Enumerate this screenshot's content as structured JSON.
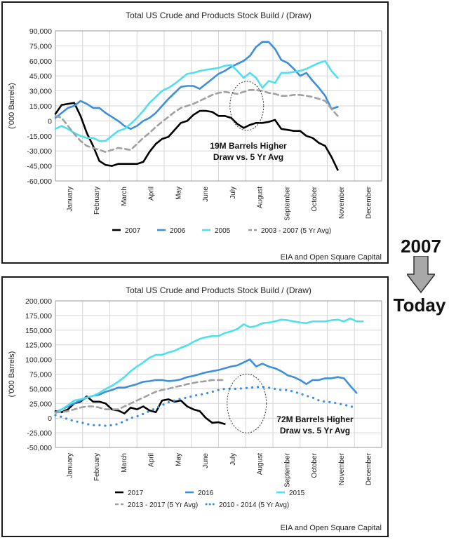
{
  "side": {
    "top_label": "2007",
    "bottom_label": "Today"
  },
  "chart_data": [
    {
      "type": "line",
      "title": "Total US Crude and Products Stock Build / (Draw)",
      "ylabel": "('000 Barrels)",
      "ylim": [
        -60000,
        90000
      ],
      "yticks": [
        90000,
        75000,
        60000,
        45000,
        30000,
        15000,
        0,
        -15000,
        -30000,
        -45000,
        -60000
      ],
      "ytick_labels": [
        "90,000",
        "75,000",
        "60,000",
        "45,000",
        "30,000",
        "15,000",
        "0",
        "-15,000",
        "-30,000",
        "-45,000",
        "-60,000"
      ],
      "months": [
        "January",
        "February",
        "March",
        "April",
        "May",
        "June",
        "July",
        "August",
        "September",
        "October",
        "November",
        "December"
      ],
      "xlim": [
        0,
        52
      ],
      "grid": true,
      "legend_position": "bottom",
      "source": "EIA and Open Square Capital",
      "annotation": {
        "text_line1": "19M Barrels Higher",
        "text_line2": "Draw vs. 5 Yr Avg",
        "circle_x": 30.5,
        "circle_y": 15000
      },
      "series": [
        {
          "name": "2007",
          "color": "#000000",
          "style": "solid",
          "width": 2.6,
          "values": [
            7000,
            16000,
            17000,
            18000,
            5000,
            -12000,
            -25000,
            -40000,
            -44000,
            -45000,
            -43000,
            -43000,
            -43000,
            -43000,
            -41000,
            -31000,
            -23000,
            -18000,
            -16000,
            -9000,
            -2000,
            0,
            6000,
            10000,
            10000,
            9000,
            5000,
            5000,
            3000,
            -3000,
            -7000,
            -4000,
            -2000,
            -2000,
            -1000,
            1000,
            -8000,
            -9000,
            -10000,
            -10000,
            -15000,
            -17000,
            -22000,
            -25000,
            -36000,
            -49000
          ]
        },
        {
          "name": "2006",
          "color": "#3c8fde",
          "style": "solid",
          "width": 2.6,
          "values": [
            3000,
            8000,
            13000,
            15000,
            20000,
            17000,
            13000,
            13000,
            8000,
            4000,
            0,
            -5000,
            -8000,
            -5000,
            0,
            3000,
            8000,
            15000,
            22000,
            28000,
            34000,
            35000,
            35000,
            32000,
            37000,
            42000,
            47000,
            50000,
            54000,
            57000,
            60000,
            65000,
            74000,
            79000,
            79000,
            72000,
            61000,
            58000,
            52000,
            45000,
            48000,
            40000,
            33000,
            25000,
            12000,
            14000
          ]
        },
        {
          "name": "2005",
          "color": "#4ee0ef",
          "style": "solid",
          "width": 2.6,
          "values": [
            -8000,
            -5000,
            -8000,
            -12000,
            -15000,
            -17000,
            -17000,
            -20000,
            -20000,
            -15000,
            -10000,
            -8000,
            -3000,
            3000,
            10000,
            18000,
            24000,
            30000,
            33000,
            37000,
            42000,
            47000,
            48000,
            50000,
            51000,
            52000,
            53000,
            55000,
            56000,
            50000,
            43000,
            48000,
            43000,
            33000,
            40000,
            38000,
            48000,
            48000,
            49000,
            50000,
            52000,
            55000,
            58000,
            60000,
            50000,
            43000
          ]
        },
        {
          "name": "2003 - 2007 (5 Yr Avg)",
          "color": "#a0a0a0",
          "style": "dash",
          "width": 2.6,
          "values": [
            5000,
            3000,
            -5000,
            -13000,
            -20000,
            -25000,
            -27000,
            -29000,
            -31000,
            -29000,
            -27000,
            -28000,
            -29000,
            -23000,
            -17000,
            -12000,
            -6000,
            -1000,
            4000,
            9000,
            13000,
            15000,
            17000,
            20000,
            23000,
            26000,
            28000,
            29000,
            28000,
            27000,
            29000,
            31000,
            31000,
            30000,
            28000,
            27000,
            25000,
            25000,
            26000,
            26000,
            25000,
            24000,
            22000,
            20000,
            12000,
            5000
          ]
        }
      ]
    },
    {
      "type": "line",
      "title": "Total US Crude and Products Stock Build / (Draw)",
      "ylabel": "('000 Barrels)",
      "ylim": [
        -50000,
        200000
      ],
      "yticks": [
        200000,
        175000,
        150000,
        125000,
        100000,
        75000,
        50000,
        25000,
        0,
        -25000,
        -50000
      ],
      "ytick_labels": [
        "200,000",
        "175,000",
        "150,000",
        "125,000",
        "100,000",
        "75,000",
        "50,000",
        "25,000",
        "0",
        "-25,000",
        "-50,000"
      ],
      "months": [
        "January",
        "February",
        "March",
        "April",
        "May",
        "June",
        "July",
        "August",
        "September",
        "October",
        "November",
        "December"
      ],
      "xlim": [
        0,
        52
      ],
      "grid": true,
      "legend_position": "bottom",
      "source": "EIA and Open Square Capital",
      "annotation": {
        "text_line1": "72M Barrels Higher",
        "text_line2": "Draw vs. 5 Yr Avg",
        "circle_x": 30.5,
        "circle_y": 25000
      },
      "series": [
        {
          "name": "2017",
          "color": "#000000",
          "style": "solid",
          "width": 2.6,
          "values": [
            12000,
            10000,
            15000,
            25000,
            28000,
            37000,
            28000,
            28000,
            25000,
            15000,
            13000,
            8000,
            18000,
            15000,
            20000,
            13000,
            10000,
            30000,
            32000,
            28000,
            30000,
            20000,
            15000,
            12000,
            0,
            -8000,
            -7000,
            -10000
          ]
        },
        {
          "name": "2016",
          "color": "#3c8fde",
          "style": "solid",
          "width": 2.6,
          "values": [
            10000,
            15000,
            20000,
            25000,
            30000,
            35000,
            38000,
            40000,
            45000,
            48000,
            52000,
            52000,
            55000,
            58000,
            62000,
            63000,
            65000,
            65000,
            63000,
            64000,
            66000,
            70000,
            72000,
            75000,
            78000,
            80000,
            82000,
            85000,
            88000,
            90000,
            95000,
            100000,
            88000,
            93000,
            88000,
            85000,
            80000,
            73000,
            70000,
            65000,
            58000,
            65000,
            65000,
            68000,
            68000,
            70000,
            68000,
            55000,
            43000
          ]
        },
        {
          "name": "2015",
          "color": "#4ee0ef",
          "style": "solid",
          "width": 2.6,
          "values": [
            8000,
            15000,
            22000,
            30000,
            32000,
            35000,
            38000,
            43000,
            50000,
            55000,
            62000,
            70000,
            80000,
            88000,
            95000,
            103000,
            108000,
            108000,
            112000,
            115000,
            120000,
            124000,
            130000,
            135000,
            138000,
            140000,
            140000,
            145000,
            148000,
            152000,
            160000,
            155000,
            157000,
            162000,
            163000,
            165000,
            168000,
            167000,
            165000,
            163000,
            162000,
            165000,
            165000,
            165000,
            167000,
            168000,
            165000,
            170000,
            165000,
            165000
          ]
        },
        {
          "name": "2013 - 2017 (5 Yr Avg)",
          "color": "#a0a0a0",
          "style": "dash",
          "width": 2.6,
          "values": [
            10000,
            10000,
            12000,
            15000,
            18000,
            20000,
            20000,
            18000,
            15000,
            15000,
            15000,
            20000,
            25000,
            30000,
            35000,
            40000,
            45000,
            48000,
            50000,
            53000,
            55000,
            58000,
            60000,
            62000,
            63000,
            65000,
            65000,
            65000
          ]
        },
        {
          "name": "2010 - 2014 (5 Yr Avg)",
          "color": "#3c8fde",
          "style": "dot",
          "width": 2.6,
          "values": [
            5000,
            2000,
            -2000,
            -5000,
            -7000,
            -10000,
            -12000,
            -12000,
            -13000,
            -12000,
            -10000,
            -5000,
            0,
            3000,
            7000,
            12000,
            17000,
            22000,
            27000,
            30000,
            33000,
            35000,
            38000,
            40000,
            42000,
            45000,
            48000,
            50000,
            50000,
            50000,
            51000,
            52000,
            53000,
            53000,
            52000,
            50000,
            48000,
            48000,
            45000,
            42000,
            38000,
            35000,
            30000,
            28000,
            27000,
            25000,
            23000,
            20000,
            18000
          ]
        }
      ]
    }
  ]
}
